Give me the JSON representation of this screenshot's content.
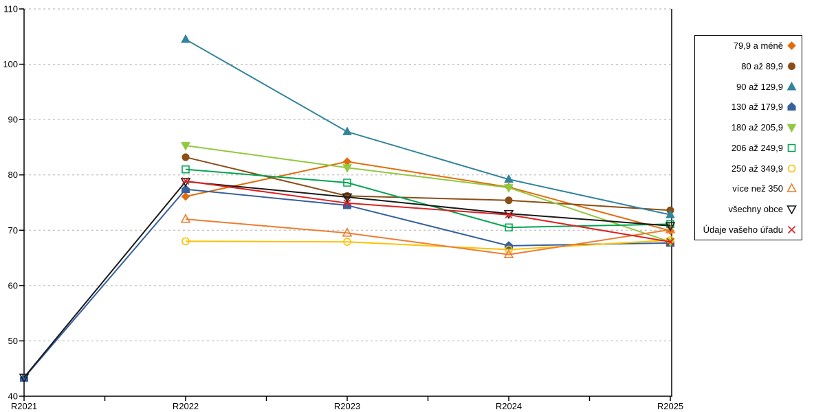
{
  "chart_data": {
    "type": "line",
    "title": "",
    "xlabel": "",
    "ylabel": "",
    "categories": [
      "R2021",
      "R2022",
      "R2023",
      "R2024",
      "R2025"
    ],
    "y_ticks": [
      40,
      50,
      60,
      70,
      80,
      90,
      100,
      110
    ],
    "ylim": [
      40,
      110
    ],
    "grid": "horizontal-dashed",
    "grid_color": "#ADADAD",
    "axis_color": "#000000",
    "legend_position": "right-outside",
    "series": [
      {
        "name": "79,9 a méně",
        "color": "#E36C0A",
        "marker": "diamond",
        "filled": true,
        "values": [
          null,
          76.1,
          82.4,
          77.8,
          69.9
        ]
      },
      {
        "name": "80 až 89,9",
        "color": "#8B4E16",
        "marker": "circle",
        "filled": true,
        "values": [
          null,
          83.2,
          76.2,
          75.4,
          73.6
        ]
      },
      {
        "name": "90 až 129,9",
        "color": "#31849B",
        "marker": "triangle-up",
        "filled": true,
        "values": [
          null,
          104.5,
          87.8,
          79.2,
          72.8
        ]
      },
      {
        "name": "130 až 179,9",
        "color": "#36619E",
        "marker": "pentagon",
        "filled": true,
        "values": [
          43.3,
          77.4,
          74.5,
          67.2,
          67.7
        ]
      },
      {
        "name": "180 až 205,9",
        "color": "#92C83E",
        "marker": "triangle-down",
        "filled": true,
        "values": [
          null,
          85.3,
          81.3,
          77.7,
          67.9
        ]
      },
      {
        "name": "206 až 249,9",
        "color": "#00A550",
        "marker": "square",
        "filled": false,
        "values": [
          null,
          81.0,
          78.6,
          70.5,
          71.1
        ]
      },
      {
        "name": "250 až 349,9",
        "color": "#FFC000",
        "marker": "circle",
        "filled": false,
        "values": [
          null,
          68.0,
          67.9,
          66.5,
          68.2
        ]
      },
      {
        "name": "více než 350",
        "color": "#ED7D31",
        "marker": "triangle-up",
        "filled": false,
        "values": [
          null,
          72.0,
          69.5,
          65.6,
          70.1
        ]
      },
      {
        "name": "všechny obce",
        "color": "#1A1A1A",
        "marker": "triangle-down",
        "filled": false,
        "values": [
          43.4,
          78.8,
          76.0,
          73.0,
          70.8
        ]
      },
      {
        "name": "Údaje vašeho úřadu",
        "color": "#DE2020",
        "marker": "x",
        "filled": false,
        "values": [
          null,
          78.9,
          74.9,
          72.8,
          67.9
        ]
      }
    ]
  }
}
